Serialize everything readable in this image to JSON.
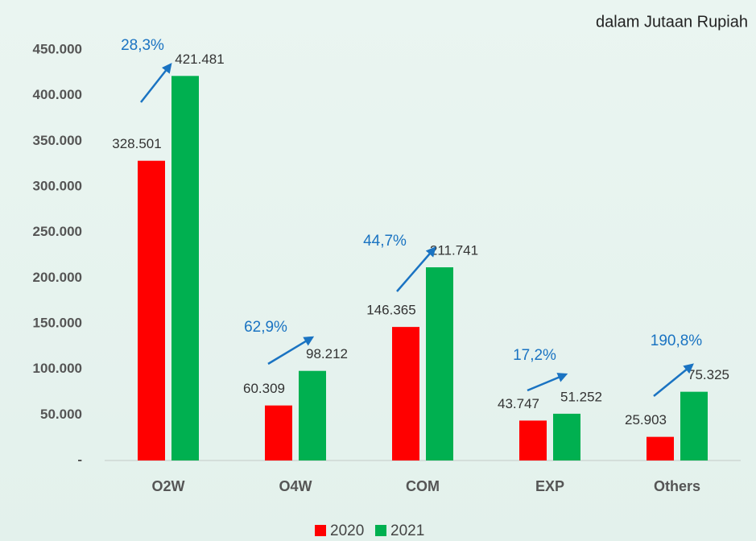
{
  "chart_data": {
    "type": "bar",
    "subtitle": "dalam Jutaan Rupiah",
    "categories": [
      "O2W",
      "O4W",
      "COM",
      "EXP",
      "Others"
    ],
    "series": [
      {
        "name": "2020",
        "color": "#ff0000",
        "values": [
          328501,
          60309,
          146365,
          43747,
          25903
        ],
        "value_labels": [
          "328.501",
          "60.309",
          "146.365",
          "43.747",
          "25.903"
        ]
      },
      {
        "name": "2021",
        "color": "#00b050",
        "values": [
          421481,
          98212,
          211741,
          51252,
          75325
        ],
        "value_labels": [
          "421.481",
          "98.212",
          "211.741",
          "51.252",
          "75.325"
        ]
      }
    ],
    "growth_labels": [
      "28,3%",
      "62,9%",
      "44,7%",
      "17,2%",
      "190,8%"
    ],
    "ylim": [
      0,
      450000
    ],
    "yticks": [
      {
        "value": 0,
        "label": "-"
      },
      {
        "value": 50000,
        "label": "50.000"
      },
      {
        "value": 100000,
        "label": "100.000"
      },
      {
        "value": 150000,
        "label": "150.000"
      },
      {
        "value": 200000,
        "label": "200.000"
      },
      {
        "value": 250000,
        "label": "250.000"
      },
      {
        "value": 300000,
        "label": "300.000"
      },
      {
        "value": 350000,
        "label": "350.000"
      },
      {
        "value": 400000,
        "label": "400.000"
      },
      {
        "value": 450000,
        "label": "450.000"
      }
    ],
    "grid": false,
    "legend": "bottom"
  }
}
